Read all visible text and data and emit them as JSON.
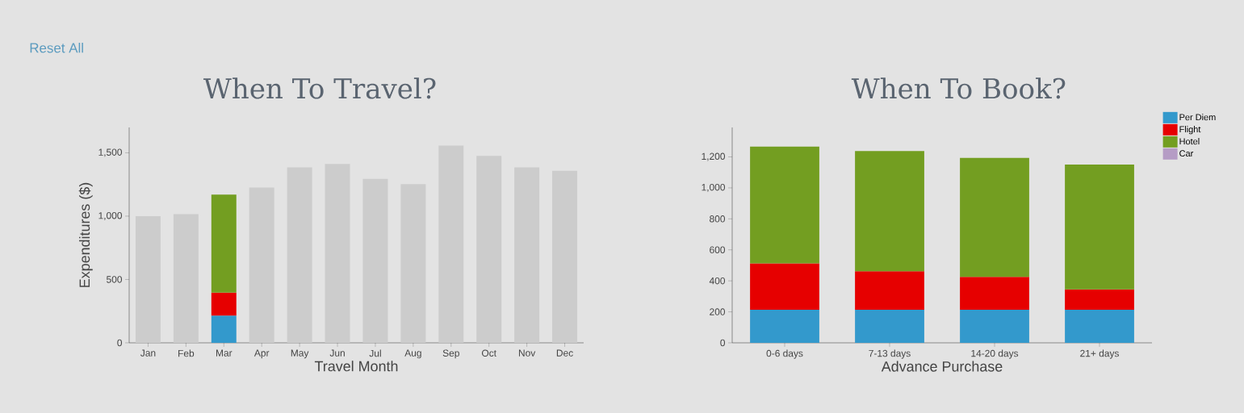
{
  "chart_data": [
    {
      "type": "bar",
      "title": "When To Travel?",
      "xlabel": "Travel Month",
      "ylabel": "Expenditures ($)",
      "annotations": [
        "Reset All"
      ],
      "stacked": true,
      "categories": [
        "Jan",
        "Feb",
        "Mar",
        "Apr",
        "May",
        "Jun",
        "Jul",
        "Aug",
        "Sep",
        "Oct",
        "Nov",
        "Dec"
      ],
      "series": [
        {
          "color": "#cccccc",
          "values": [
            1000,
            1016,
            null,
            1225,
            1385,
            1412,
            1294,
            1252,
            1557,
            1476,
            1385,
            1358
          ]
        },
        {
          "color": "#3399cc",
          "values": [
            null,
            null,
            215,
            null,
            null,
            null,
            null,
            null,
            null,
            null,
            null,
            null
          ]
        },
        {
          "color": "#e60000",
          "values": [
            null,
            null,
            181,
            null,
            null,
            null,
            null,
            null,
            null,
            null,
            null,
            null
          ]
        },
        {
          "color": "#739e21",
          "values": [
            null,
            null,
            774,
            null,
            null,
            null,
            null,
            null,
            null,
            null,
            null,
            null
          ]
        }
      ],
      "ylim": [
        0,
        1700
      ],
      "yticks": [
        0,
        500,
        {
          "value": 1000,
          "label": "1,000"
        },
        {
          "value": 1500,
          "label": "1,500"
        }
      ]
    },
    {
      "type": "bar",
      "title": "When To Book?",
      "xlabel": "Advance Purchase",
      "stacked": true,
      "legend": "top right",
      "categories": [
        "0-6 days",
        "7-13 days",
        "14-20 days",
        "21+ days"
      ],
      "series": [
        {
          "name": "Per Diem",
          "color": "#3399cc",
          "values": [
            213,
            213,
            213,
            213
          ]
        },
        {
          "name": "Flight",
          "color": "#e60000",
          "values": [
            300,
            249,
            213,
            132
          ]
        },
        {
          "name": "Hotel",
          "color": "#739e21",
          "values": [
            754,
            776,
            767,
            805
          ]
        },
        {
          "name": "Car",
          "color": "#b59cc5",
          "values": [
            null,
            null,
            null,
            null
          ]
        }
      ],
      "ylim": [
        0,
        1390
      ],
      "yticks": [
        0,
        200,
        400,
        600,
        800,
        {
          "value": 1000,
          "label": "1,000"
        },
        {
          "value": 1200,
          "label": "1,200"
        }
      ]
    }
  ]
}
